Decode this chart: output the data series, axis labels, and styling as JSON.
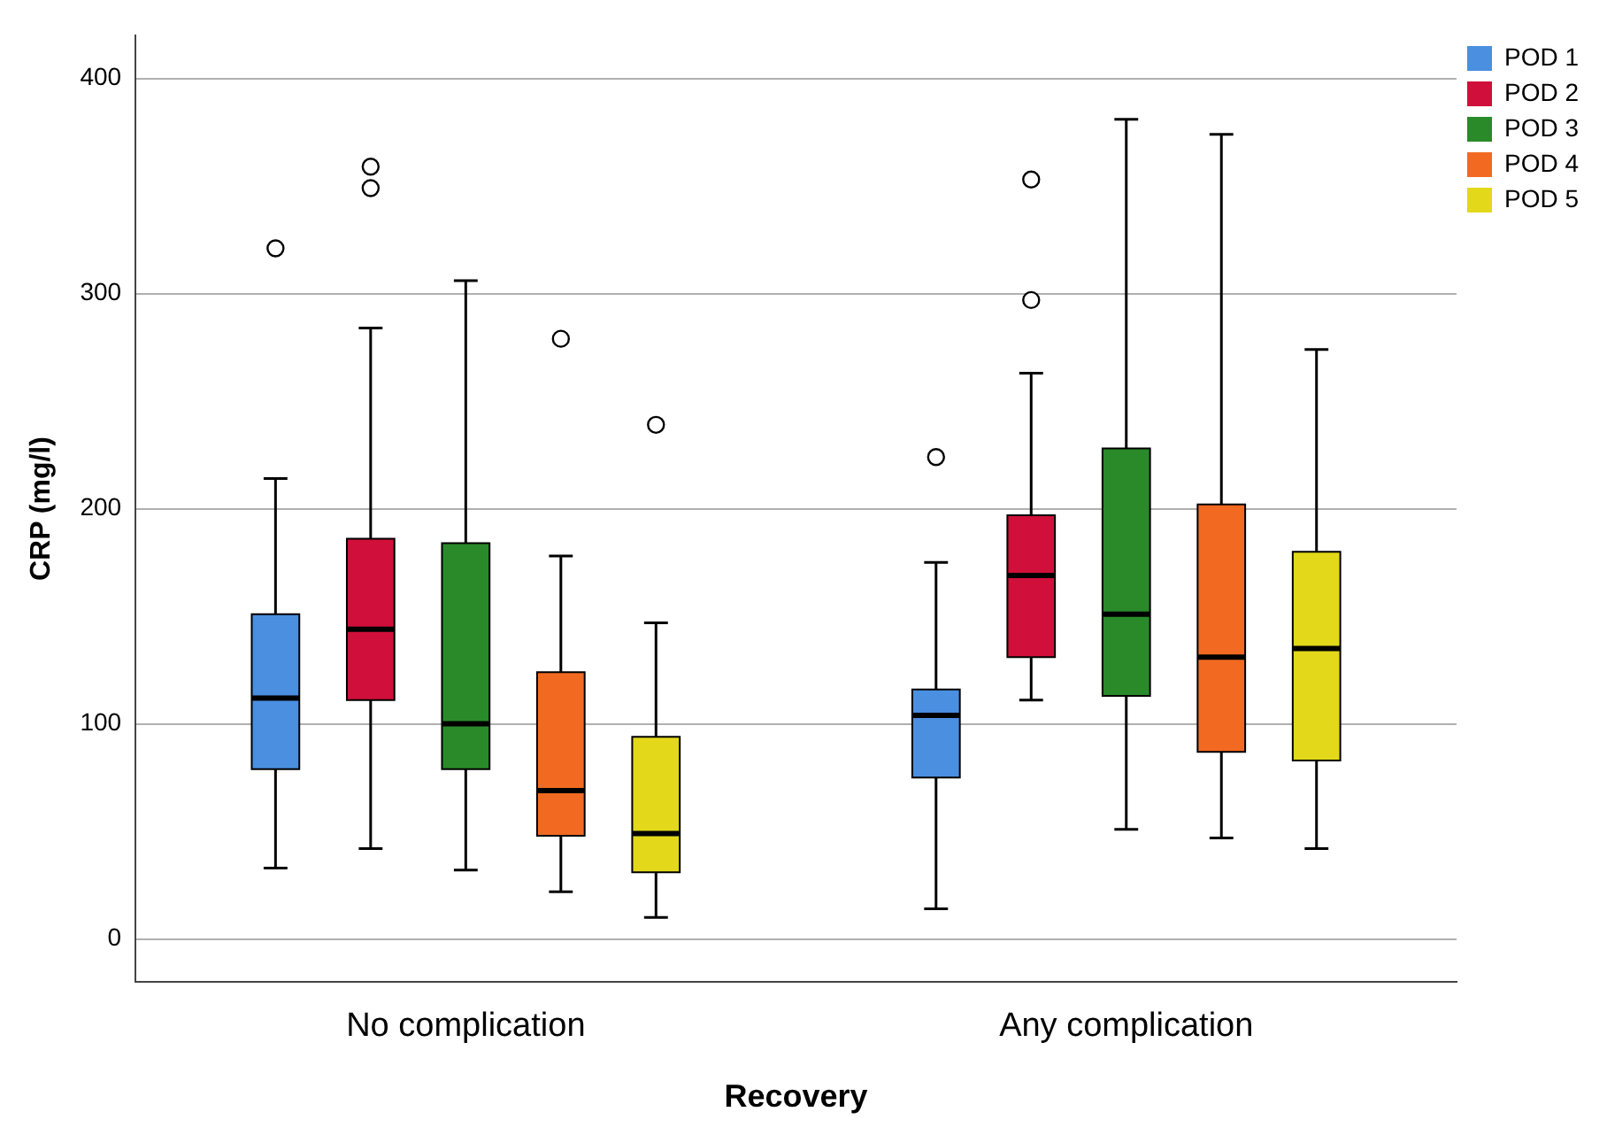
{
  "chart_data": {
    "type": "box",
    "xlabel": "Recovery",
    "ylabel": "CRP (mg/l)",
    "categories": [
      "No complication",
      "Any complication"
    ],
    "ylim": [
      -20,
      420
    ],
    "yticks": [
      0,
      100,
      200,
      300,
      400
    ],
    "grid": "y",
    "legend": "top right",
    "series": [
      {
        "name": "POD 1",
        "color": "#4a8fe0",
        "boxes": [
          {
            "low": 33,
            "q1": 79,
            "median": 112,
            "q3": 151,
            "high": 214,
            "outliers": [
              321
            ]
          },
          {
            "low": 14,
            "q1": 75,
            "median": 104,
            "q3": 116,
            "high": 175,
            "outliers": [
              224
            ]
          }
        ]
      },
      {
        "name": "POD 2",
        "color": "#d0103a",
        "boxes": [
          {
            "low": 42,
            "q1": 111,
            "median": 144,
            "q3": 186,
            "high": 284,
            "outliers": [
              349,
              359
            ]
          },
          {
            "low": 111,
            "q1": 131,
            "median": 169,
            "q3": 197,
            "high": 263,
            "outliers": [
              297,
              353
            ]
          }
        ]
      },
      {
        "name": "POD 3",
        "color": "#2a8a2a",
        "boxes": [
          {
            "low": 32,
            "q1": 79,
            "median": 100,
            "q3": 184,
            "high": 306
          },
          {
            "low": 51,
            "q1": 113,
            "median": 151,
            "q3": 228,
            "high": 381
          }
        ]
      },
      {
        "name": "POD 4",
        "color": "#f26a21",
        "boxes": [
          {
            "low": 22,
            "q1": 48,
            "median": 69,
            "q3": 124,
            "high": 178,
            "outliers": [
              279
            ]
          },
          {
            "low": 47,
            "q1": 87,
            "median": 131,
            "q3": 202,
            "high": 374
          }
        ]
      },
      {
        "name": "POD 5",
        "color": "#e3d81a",
        "boxes": [
          {
            "low": 10,
            "q1": 31,
            "median": 49,
            "q3": 94,
            "high": 147,
            "outliers": [
              239
            ]
          },
          {
            "low": 42,
            "q1": 83,
            "median": 135,
            "q3": 180,
            "high": 274
          }
        ]
      }
    ]
  }
}
